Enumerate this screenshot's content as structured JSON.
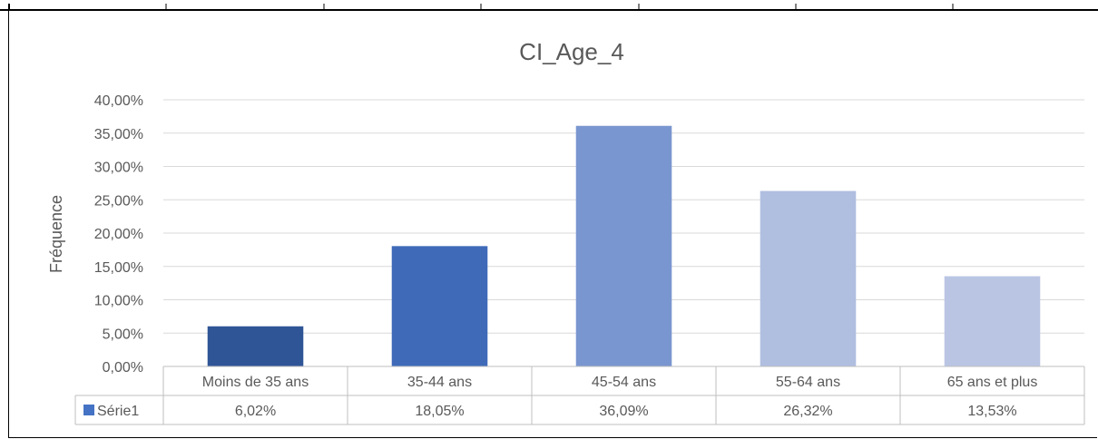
{
  "chart_data": {
    "type": "bar",
    "title": "CI_Age_4",
    "xlabel": "",
    "ylabel": "Fréquence",
    "categories": [
      "Moins de 35 ans",
      "35-44 ans",
      "45-54 ans",
      "55-64 ans",
      "65 ans et plus"
    ],
    "series": [
      {
        "name": "Série1",
        "values": [
          6.02,
          18.05,
          36.09,
          26.32,
          13.53
        ],
        "data_labels": [
          "6,02%",
          "18,05%",
          "36,09%",
          "26,32%",
          "13,53%"
        ]
      }
    ],
    "ylim": [
      0,
      40
    ],
    "yticks": [
      "0,00%",
      "5,00%",
      "10,00%",
      "15,00%",
      "20,00%",
      "25,00%",
      "30,00%",
      "35,00%",
      "40,00%"
    ],
    "grid": true,
    "legend": "data-table-left",
    "bar_colors": [
      "#2F5597",
      "#3F6AB8",
      "#7A96D0",
      "#B0BEE0",
      "#BAC5E4"
    ],
    "legend_color": "#4472C4",
    "gridline_color": "#D9D9D9"
  }
}
